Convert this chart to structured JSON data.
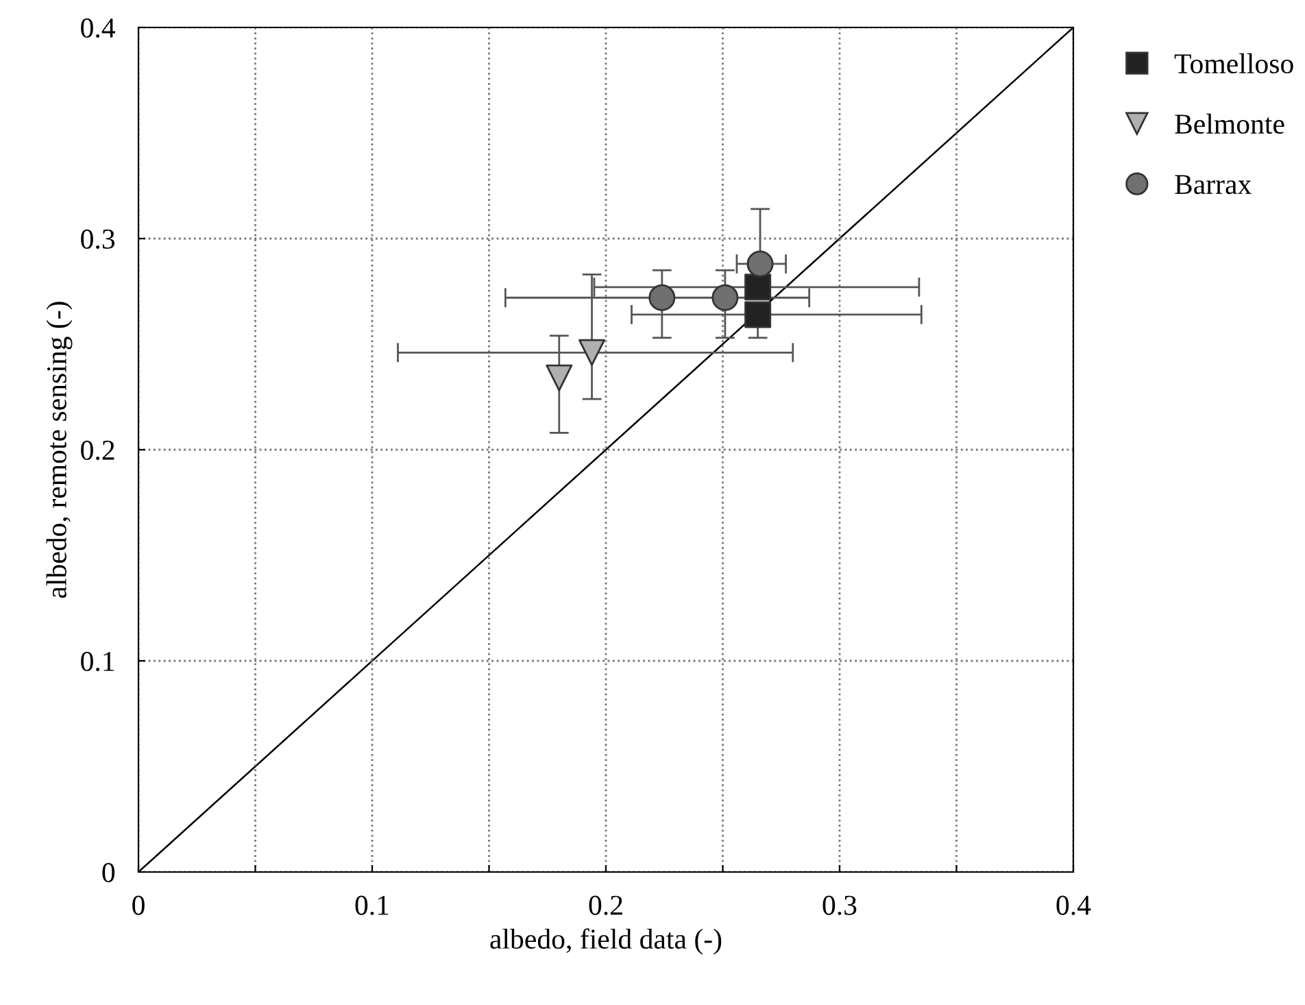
{
  "chart_data": {
    "type": "scatter",
    "xlabel": "albedo, field data (-)",
    "ylabel": "albedo, remote sensing (-)",
    "xlim": [
      0,
      0.4
    ],
    "ylim": [
      0,
      0.4
    ],
    "xticks": [
      0,
      {
        "value": 0.05,
        "label": null
      },
      0.1,
      {
        "value": 0.15,
        "label": null
      },
      0.2,
      {
        "value": 0.25,
        "label": null
      },
      0.3,
      {
        "value": 0.35,
        "label": null
      },
      0.4
    ],
    "yticks": [
      0,
      0.1,
      0.2,
      0.3,
      0.4
    ],
    "grid": true,
    "legend": "right",
    "series": [
      {
        "name": "Tomelloso",
        "color": "#222222",
        "marker": "square",
        "x": [
          0.265,
          0.265
        ],
        "values": [
          0.277,
          0.264
        ],
        "errors": [
          null,
          [
            0.253,
            0.264
          ]
        ],
        "xerrors": [
          [
            0.195,
            0.334
          ],
          [
            0.211,
            0.335
          ]
        ]
      },
      {
        "name": "Belmonte",
        "color": "#b0b0b0",
        "marker": "triangle",
        "x": [
          0.194,
          0.18
        ],
        "values": [
          0.246,
          0.234
        ],
        "errors": [
          [
            0.224,
            0.283
          ],
          [
            0.208,
            0.254
          ]
        ],
        "xerrors": [
          [
            0.111,
            0.28
          ],
          null
        ]
      },
      {
        "name": "Barrax",
        "color": "#707070",
        "marker": "circle",
        "x": [
          0.224,
          0.251,
          0.266
        ],
        "values": [
          0.272,
          0.272,
          0.288
        ],
        "errors": [
          [
            0.253,
            0.285
          ],
          [
            0.253,
            0.285
          ],
          [
            0.288,
            0.314
          ]
        ],
        "xerrors": [
          [
            0.157,
            0.287
          ],
          null,
          [
            0.256,
            0.277
          ]
        ]
      },
      {
        "type": "line",
        "color": "#000000",
        "marker": "none",
        "x": [
          0,
          0.4
        ],
        "values": [
          0,
          0.4
        ]
      }
    ]
  }
}
